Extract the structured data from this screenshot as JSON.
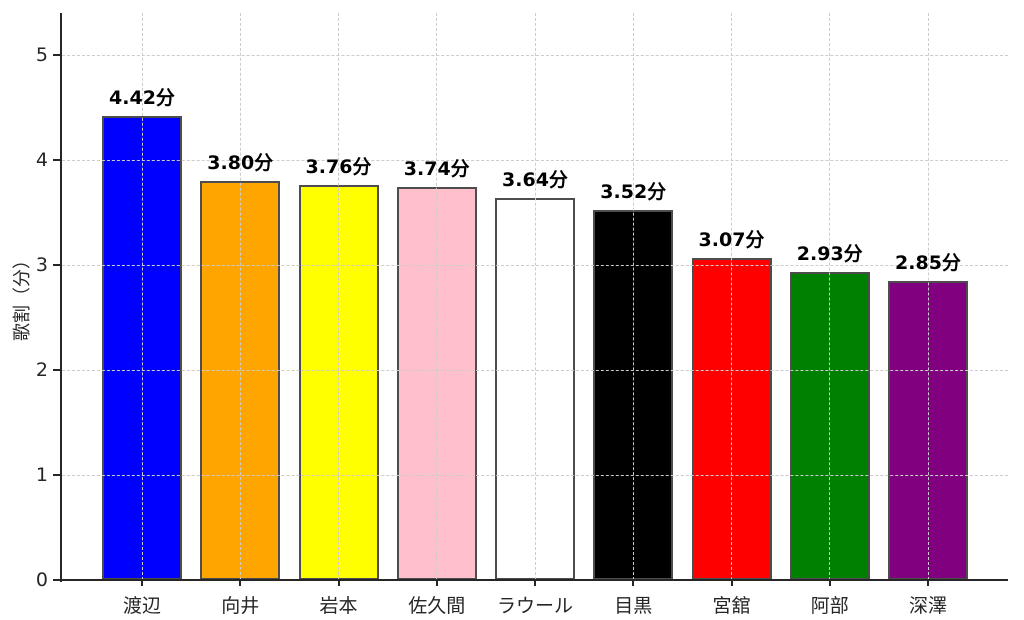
{
  "chart_data": {
    "type": "bar",
    "title": "",
    "xlabel": "",
    "ylabel": "歌割（分）",
    "unit_suffix": "分",
    "categories": [
      "渡辺",
      "向井",
      "岩本",
      "佐久間",
      "ラウール",
      "目黒",
      "宮舘",
      "阿部",
      "深澤"
    ],
    "values": [
      4.42,
      3.8,
      3.76,
      3.74,
      3.64,
      3.52,
      3.07,
      2.93,
      2.85
    ],
    "value_labels": [
      "4.42分",
      "3.80分",
      "3.76分",
      "3.74分",
      "3.64分",
      "3.52分",
      "3.07分",
      "2.93分",
      "2.85分"
    ],
    "bar_colors": [
      "#0000ff",
      "#ffa500",
      "#ffff00",
      "#ffc0cb",
      "#ffffff",
      "#000000",
      "#ff0000",
      "#008000",
      "#800080"
    ],
    "bar_edge_color": "#4d4d4d",
    "axis_color": "#262626",
    "grid_color": "#cccccc",
    "grid": true,
    "grid_style": "dashed",
    "legend_position": "none",
    "yticks": [
      0,
      1,
      2,
      3,
      4,
      5
    ],
    "ylim": [
      0,
      5.4
    ]
  }
}
